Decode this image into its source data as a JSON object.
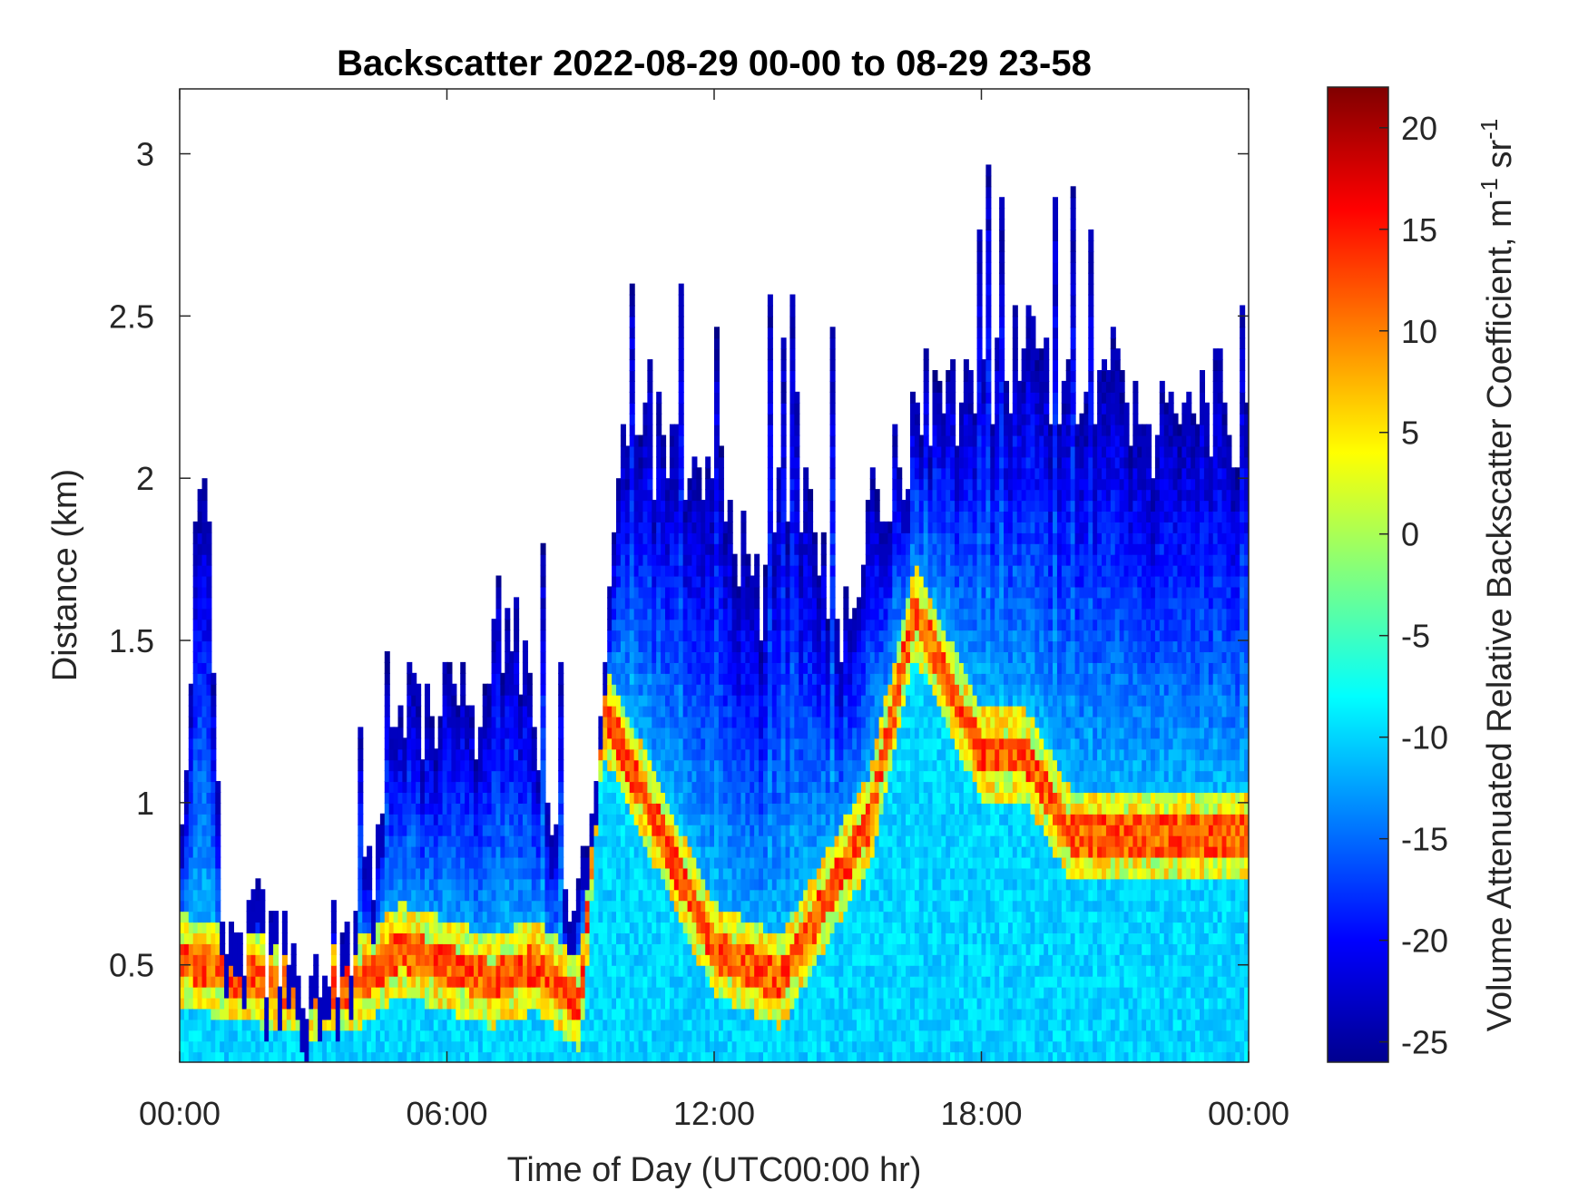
{
  "chart_data": {
    "type": "heatmap",
    "title": "Backscatter 2022-08-29 00-00 to 08-29 23-58",
    "xlabel": "Time of Day (UTC00:00 hr)",
    "ylabel": "Distance (km)",
    "colorbar_label": "Volume Attenuated Relative Backscatter Coefficient, m",
    "colorbar_unit_sup1": "-1",
    "colorbar_unit_mid": " sr",
    "colorbar_unit_sup2": "-1",
    "colormap": "jet",
    "xlim": [
      0,
      24
    ],
    "ylim": [
      0.2,
      3.2
    ],
    "clim": [
      -26,
      22
    ],
    "x_ticks": [
      0,
      6,
      12,
      18,
      24
    ],
    "x_tick_labels": [
      "00:00",
      "06:00",
      "12:00",
      "18:00",
      "00:00"
    ],
    "y_ticks": [
      0.5,
      1,
      1.5,
      2,
      2.5,
      3
    ],
    "y_tick_labels": [
      "0.5",
      "1",
      "1.5",
      "2",
      "2.5",
      "3"
    ],
    "cbar_ticks": [
      -25,
      -20,
      -15,
      -10,
      -5,
      0,
      5,
      10,
      15,
      20
    ],
    "cbar_tick_labels": [
      "-25",
      "-20",
      "-15",
      "-10",
      "-5",
      "0",
      "5",
      "10",
      "15",
      "20"
    ],
    "profile_tops_km": {
      "hours": [
        0,
        0.5,
        1,
        1.5,
        2,
        2.5,
        3,
        3.5,
        4,
        4.5,
        5,
        5.5,
        6,
        6.5,
        7,
        7.5,
        8,
        8.5,
        9,
        9.5,
        10,
        10.5,
        11,
        11.5,
        12,
        12.5,
        13,
        13.5,
        14,
        14.5,
        15,
        15.5,
        16,
        16.5,
        17,
        17.5,
        18,
        18.5,
        19,
        19.5,
        20,
        20.5,
        21,
        21.5,
        22,
        22.5,
        23,
        23.5,
        24
      ],
      "top": [
        0.72,
        2.2,
        0.62,
        0.6,
        0.55,
        0.5,
        0.47,
        0.55,
        0.65,
        0.8,
        1.35,
        1.2,
        1.35,
        1.2,
        1.4,
        1.55,
        1.3,
        0.75,
        0.62,
        1.4,
        2.05,
        2.1,
        2.1,
        1.9,
        2.0,
        1.9,
        1.4,
        2.05,
        1.95,
        1.75,
        1.5,
        1.9,
        2.0,
        2.15,
        2.3,
        2.25,
        2.3,
        2.35,
        2.35,
        2.3,
        2.25,
        2.3,
        2.3,
        2.2,
        2.15,
        2.1,
        2.2,
        2.25,
        2.1
      ]
    },
    "boundary_layer_km": {
      "hours": [
        0,
        1,
        2,
        3,
        4,
        5,
        6,
        7,
        8,
        9,
        9.5,
        12,
        13.5,
        15.5,
        16.5,
        18,
        19,
        20
      ],
      "height": [
        0.52,
        0.48,
        0.45,
        0.42,
        0.45,
        0.55,
        0.5,
        0.45,
        0.5,
        0.38,
        1.3,
        0.55,
        0.45,
        0.95,
        1.6,
        1.15,
        1.15,
        0.9
      ]
    }
  }
}
